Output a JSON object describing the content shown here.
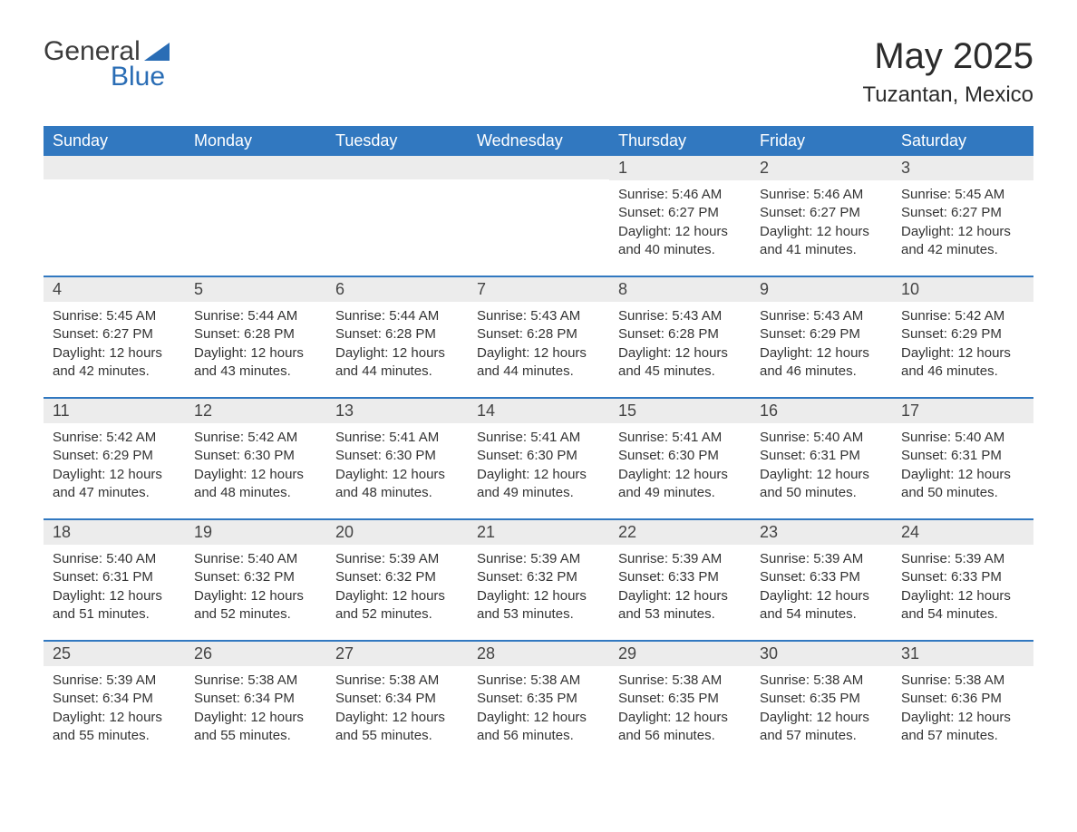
{
  "brand": {
    "name_part1": "General",
    "name_part2": "Blue",
    "logo_fill": "#2a6db5"
  },
  "title": "May 2025",
  "location": "Tuzantan, Mexico",
  "colors": {
    "header_bg": "#3178c0",
    "header_text": "#ffffff",
    "daynum_bg": "#ececec",
    "border": "#3178c0",
    "body_text": "#333333",
    "page_bg": "#ffffff"
  },
  "day_labels": [
    "Sunday",
    "Monday",
    "Tuesday",
    "Wednesday",
    "Thursday",
    "Friday",
    "Saturday"
  ],
  "labels": {
    "sunrise": "Sunrise:",
    "sunset": "Sunset:",
    "daylight": "Daylight:"
  },
  "weeks": [
    [
      {
        "day": "",
        "sunrise": "",
        "sunset": "",
        "daylight": ""
      },
      {
        "day": "",
        "sunrise": "",
        "sunset": "",
        "daylight": ""
      },
      {
        "day": "",
        "sunrise": "",
        "sunset": "",
        "daylight": ""
      },
      {
        "day": "",
        "sunrise": "",
        "sunset": "",
        "daylight": ""
      },
      {
        "day": "1",
        "sunrise": "5:46 AM",
        "sunset": "6:27 PM",
        "daylight": "12 hours and 40 minutes."
      },
      {
        "day": "2",
        "sunrise": "5:46 AM",
        "sunset": "6:27 PM",
        "daylight": "12 hours and 41 minutes."
      },
      {
        "day": "3",
        "sunrise": "5:45 AM",
        "sunset": "6:27 PM",
        "daylight": "12 hours and 42 minutes."
      }
    ],
    [
      {
        "day": "4",
        "sunrise": "5:45 AM",
        "sunset": "6:27 PM",
        "daylight": "12 hours and 42 minutes."
      },
      {
        "day": "5",
        "sunrise": "5:44 AM",
        "sunset": "6:28 PM",
        "daylight": "12 hours and 43 minutes."
      },
      {
        "day": "6",
        "sunrise": "5:44 AM",
        "sunset": "6:28 PM",
        "daylight": "12 hours and 44 minutes."
      },
      {
        "day": "7",
        "sunrise": "5:43 AM",
        "sunset": "6:28 PM",
        "daylight": "12 hours and 44 minutes."
      },
      {
        "day": "8",
        "sunrise": "5:43 AM",
        "sunset": "6:28 PM",
        "daylight": "12 hours and 45 minutes."
      },
      {
        "day": "9",
        "sunrise": "5:43 AM",
        "sunset": "6:29 PM",
        "daylight": "12 hours and 46 minutes."
      },
      {
        "day": "10",
        "sunrise": "5:42 AM",
        "sunset": "6:29 PM",
        "daylight": "12 hours and 46 minutes."
      }
    ],
    [
      {
        "day": "11",
        "sunrise": "5:42 AM",
        "sunset": "6:29 PM",
        "daylight": "12 hours and 47 minutes."
      },
      {
        "day": "12",
        "sunrise": "5:42 AM",
        "sunset": "6:30 PM",
        "daylight": "12 hours and 48 minutes."
      },
      {
        "day": "13",
        "sunrise": "5:41 AM",
        "sunset": "6:30 PM",
        "daylight": "12 hours and 48 minutes."
      },
      {
        "day": "14",
        "sunrise": "5:41 AM",
        "sunset": "6:30 PM",
        "daylight": "12 hours and 49 minutes."
      },
      {
        "day": "15",
        "sunrise": "5:41 AM",
        "sunset": "6:30 PM",
        "daylight": "12 hours and 49 minutes."
      },
      {
        "day": "16",
        "sunrise": "5:40 AM",
        "sunset": "6:31 PM",
        "daylight": "12 hours and 50 minutes."
      },
      {
        "day": "17",
        "sunrise": "5:40 AM",
        "sunset": "6:31 PM",
        "daylight": "12 hours and 50 minutes."
      }
    ],
    [
      {
        "day": "18",
        "sunrise": "5:40 AM",
        "sunset": "6:31 PM",
        "daylight": "12 hours and 51 minutes."
      },
      {
        "day": "19",
        "sunrise": "5:40 AM",
        "sunset": "6:32 PM",
        "daylight": "12 hours and 52 minutes."
      },
      {
        "day": "20",
        "sunrise": "5:39 AM",
        "sunset": "6:32 PM",
        "daylight": "12 hours and 52 minutes."
      },
      {
        "day": "21",
        "sunrise": "5:39 AM",
        "sunset": "6:32 PM",
        "daylight": "12 hours and 53 minutes."
      },
      {
        "day": "22",
        "sunrise": "5:39 AM",
        "sunset": "6:33 PM",
        "daylight": "12 hours and 53 minutes."
      },
      {
        "day": "23",
        "sunrise": "5:39 AM",
        "sunset": "6:33 PM",
        "daylight": "12 hours and 54 minutes."
      },
      {
        "day": "24",
        "sunrise": "5:39 AM",
        "sunset": "6:33 PM",
        "daylight": "12 hours and 54 minutes."
      }
    ],
    [
      {
        "day": "25",
        "sunrise": "5:39 AM",
        "sunset": "6:34 PM",
        "daylight": "12 hours and 55 minutes."
      },
      {
        "day": "26",
        "sunrise": "5:38 AM",
        "sunset": "6:34 PM",
        "daylight": "12 hours and 55 minutes."
      },
      {
        "day": "27",
        "sunrise": "5:38 AM",
        "sunset": "6:34 PM",
        "daylight": "12 hours and 55 minutes."
      },
      {
        "day": "28",
        "sunrise": "5:38 AM",
        "sunset": "6:35 PM",
        "daylight": "12 hours and 56 minutes."
      },
      {
        "day": "29",
        "sunrise": "5:38 AM",
        "sunset": "6:35 PM",
        "daylight": "12 hours and 56 minutes."
      },
      {
        "day": "30",
        "sunrise": "5:38 AM",
        "sunset": "6:35 PM",
        "daylight": "12 hours and 57 minutes."
      },
      {
        "day": "31",
        "sunrise": "5:38 AM",
        "sunset": "6:36 PM",
        "daylight": "12 hours and 57 minutes."
      }
    ]
  ]
}
